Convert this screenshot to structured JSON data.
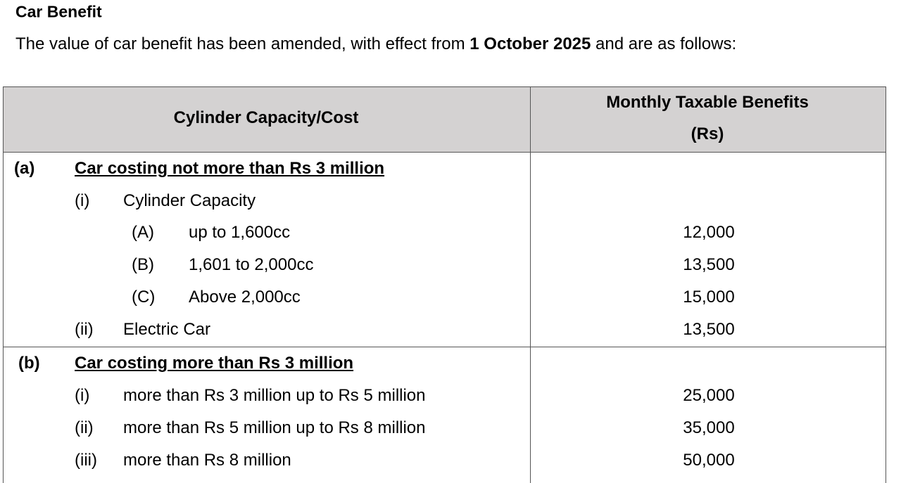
{
  "header": {
    "title": "Car Benefit",
    "intro": {
      "before": "The value of car benefit has been amended, with effect from",
      "bold": "1 October 2025",
      "after": "and are as follows:"
    }
  },
  "table": {
    "columns": [
      "Cylinder Capacity/Cost",
      [
        "Monthly Taxable Benefits",
        "(Rs)"
      ]
    ],
    "sections": [
      {
        "label": "(a)",
        "heading": "Car costing not more than Rs 3 million",
        "items": [
          {
            "label": "(i)",
            "text": "Cylinder Capacity",
            "subitems": [
              {
                "label": "(A)",
                "text": "up to 1,600cc",
                "value": "12,000"
              },
              {
                "label": "(B)",
                "text": "1,601 to 2,000cc",
                "value": "13,500"
              },
              {
                "label": "(C)",
                "text": "Above 2,000cc",
                "value": "15,000"
              }
            ]
          },
          {
            "label": "(ii)",
            "text": "Electric Car",
            "value": "13,500"
          }
        ]
      },
      {
        "label": "(b)",
        "heading": "Car costing more than Rs 3 million",
        "items": [
          {
            "label": "(i)",
            "text": "more than Rs 3 million up to Rs 5 million",
            "value": "25,000"
          },
          {
            "label": "(ii)",
            "text": "more than Rs 5 million up to Rs 8 million",
            "value": "35,000"
          },
          {
            "label": "(iii)",
            "text": "more than Rs 8 million",
            "value": "50,000"
          }
        ]
      }
    ]
  }
}
